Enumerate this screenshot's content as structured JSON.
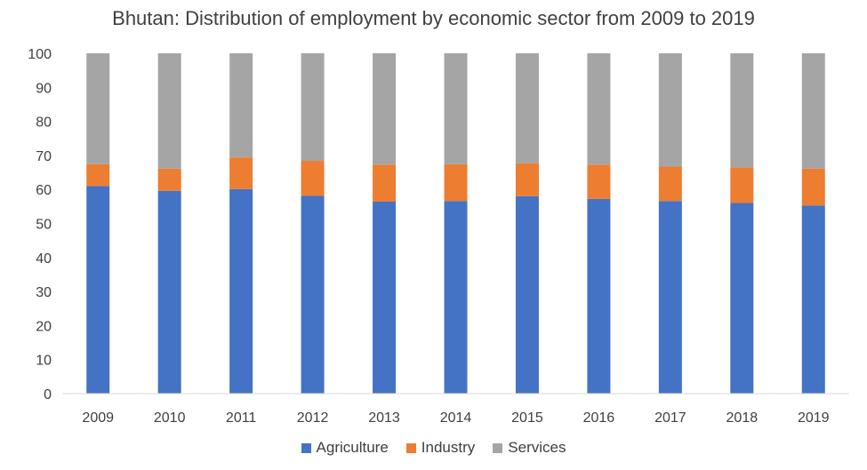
{
  "chart_data": {
    "type": "bar",
    "stacked": true,
    "title": "Bhutan: Distribution of employment by economic sector from 2009 to 2019",
    "xlabel": "",
    "ylabel": "",
    "ylim": [
      0,
      100
    ],
    "yticks": [
      0,
      10,
      20,
      30,
      40,
      50,
      60,
      70,
      80,
      90,
      100
    ],
    "grid": false,
    "legend_position": "bottom",
    "categories": [
      "2009",
      "2010",
      "2011",
      "2012",
      "2013",
      "2014",
      "2015",
      "2016",
      "2017",
      "2018",
      "2019"
    ],
    "series": [
      {
        "name": "Agriculture",
        "color": "#4472C4",
        "values": [
          61.0,
          59.6,
          60.1,
          58.1,
          56.4,
          56.6,
          58.0,
          57.2,
          56.6,
          56.0,
          55.3
        ]
      },
      {
        "name": "Industry",
        "color": "#ED7D31",
        "values": [
          6.4,
          6.5,
          9.3,
          10.3,
          10.9,
          10.8,
          9.7,
          10.1,
          10.1,
          10.5,
          10.8
        ]
      },
      {
        "name": "Services",
        "color": "#A5A5A5",
        "values": [
          32.6,
          33.9,
          30.6,
          31.6,
          32.7,
          32.6,
          32.3,
          32.7,
          33.3,
          33.5,
          33.9
        ]
      }
    ]
  }
}
